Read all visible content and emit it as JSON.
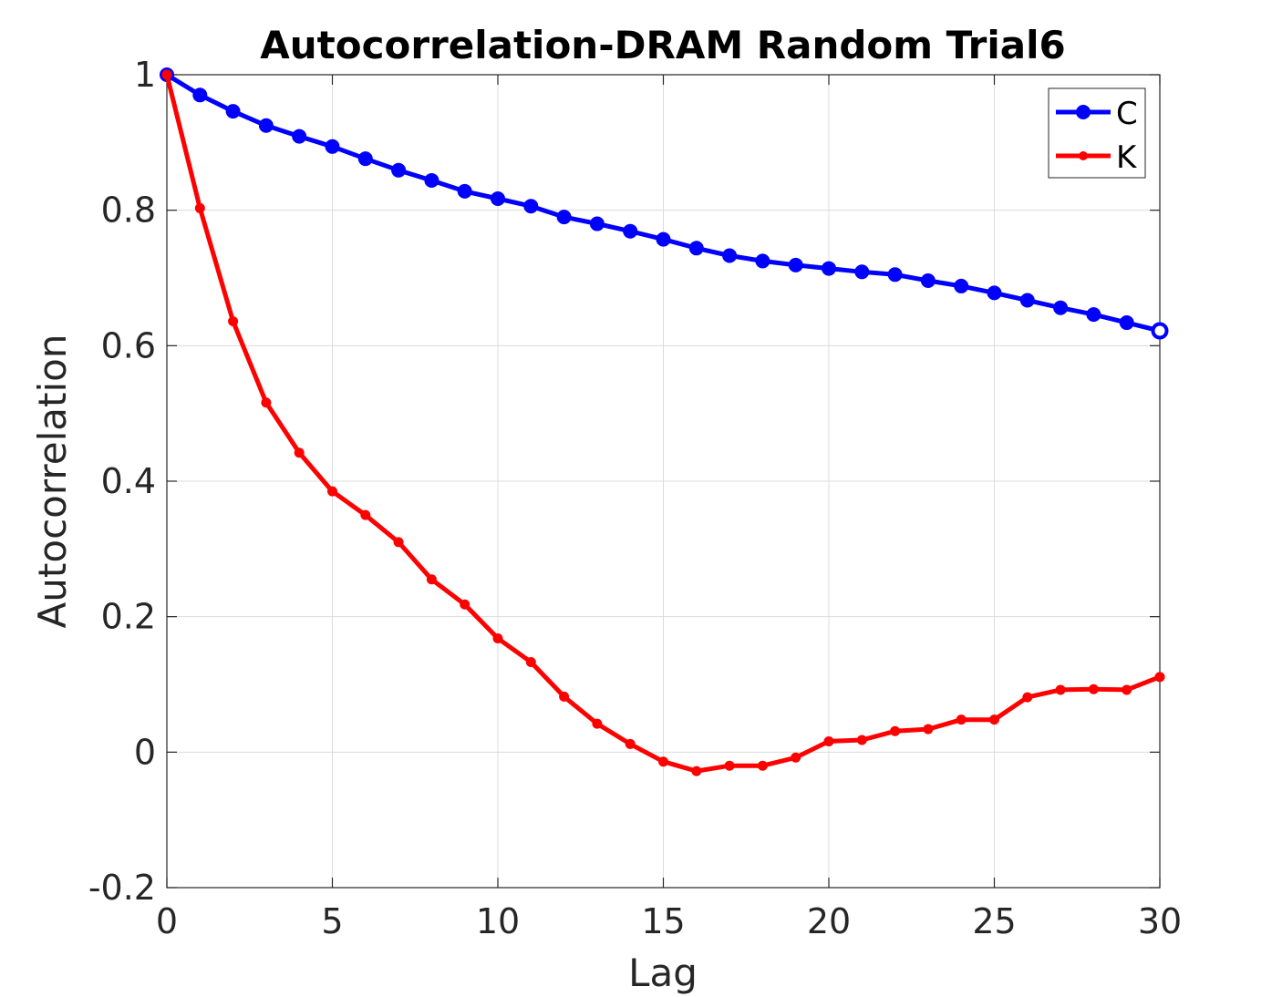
{
  "chart_data": {
    "type": "line",
    "title": "Autocorrelation-DRAM Random Trial6",
    "xlabel": "Lag",
    "ylabel": "Autocorrelation",
    "xlim": [
      0,
      30
    ],
    "ylim": [
      -0.2,
      1
    ],
    "xticks": [
      0,
      5,
      10,
      15,
      20,
      25,
      30
    ],
    "xtick_labels": [
      "0",
      "5",
      "10",
      "15",
      "20",
      "25",
      "30"
    ],
    "yticks": [
      -0.2,
      0,
      0.2,
      0.4,
      0.6,
      0.8,
      1
    ],
    "ytick_labels": [
      "-0.2",
      "0",
      "0.2",
      "0.4",
      "0.6",
      "0.8",
      "1"
    ],
    "grid": true,
    "legend_position": "top-right",
    "x": [
      0,
      1,
      2,
      3,
      4,
      5,
      6,
      7,
      8,
      9,
      10,
      11,
      12,
      13,
      14,
      15,
      16,
      17,
      18,
      19,
      20,
      21,
      22,
      23,
      24,
      25,
      26,
      27,
      28,
      29,
      30
    ],
    "series": [
      {
        "name": "C",
        "color": "#0000ff",
        "marker": "large-dot",
        "values": [
          1.0,
          0.97,
          0.946,
          0.925,
          0.909,
          0.894,
          0.876,
          0.859,
          0.844,
          0.828,
          0.817,
          0.806,
          0.79,
          0.78,
          0.769,
          0.757,
          0.744,
          0.733,
          0.725,
          0.719,
          0.714,
          0.709,
          0.705,
          0.696,
          0.688,
          0.678,
          0.667,
          0.656,
          0.646,
          0.634,
          0.622
        ]
      },
      {
        "name": "K",
        "color": "#ff0000",
        "marker": "small-dot",
        "values": [
          1.0,
          0.803,
          0.636,
          0.516,
          0.442,
          0.385,
          0.35,
          0.31,
          0.255,
          0.218,
          0.168,
          0.133,
          0.082,
          0.042,
          0.012,
          -0.014,
          -0.028,
          -0.02,
          -0.02,
          -0.008,
          0.016,
          0.018,
          0.031,
          0.034,
          0.048,
          0.048,
          0.081,
          0.092,
          0.093,
          0.092,
          0.111
        ]
      }
    ]
  }
}
